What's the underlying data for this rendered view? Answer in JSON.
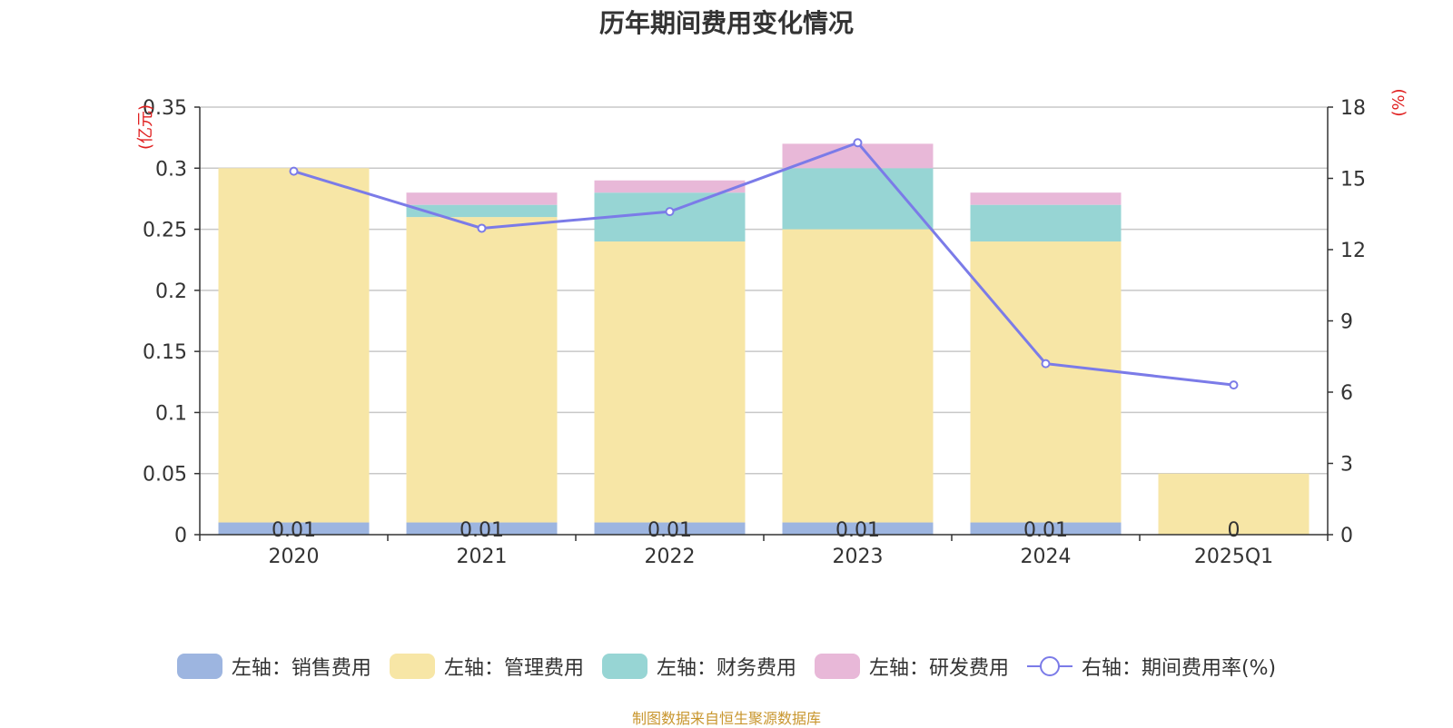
{
  "title": "历年期间费用变化情况",
  "source": "制图数据来自恒生聚源数据库",
  "chart_data": {
    "type": "bar",
    "stacked": true,
    "categories": [
      "2020",
      "2021",
      "2022",
      "2023",
      "2024",
      "2025Q1"
    ],
    "left_axis": {
      "label": "(亿元)",
      "ylim": [
        0,
        0.35
      ],
      "ticks": [
        "0",
        "0.05",
        "0.1",
        "0.15",
        "0.2",
        "0.25",
        "0.3",
        "0.35"
      ]
    },
    "right_axis": {
      "label": "(%)",
      "ylim": [
        0,
        18
      ],
      "ticks": [
        "0",
        "3",
        "6",
        "9",
        "12",
        "15",
        "18"
      ]
    },
    "grid": true,
    "legend_position": "bottom",
    "series": [
      {
        "name": "左轴：销售费用",
        "axis": "left",
        "color": "#9db5e0",
        "values": [
          0.01,
          0.01,
          0.01,
          0.01,
          0.01,
          0
        ],
        "labels": [
          "0.01",
          "0.01",
          "0.01",
          "0.01",
          "0.01",
          "0"
        ]
      },
      {
        "name": "左轴：管理费用",
        "axis": "left",
        "color": "#f7e6a6",
        "values": [
          0.29,
          0.25,
          0.23,
          0.24,
          0.23,
          0.05
        ]
      },
      {
        "name": "左轴：财务费用",
        "axis": "left",
        "color": "#97d5d4",
        "values": [
          0,
          0.01,
          0.04,
          0.05,
          0.03,
          0
        ]
      },
      {
        "name": "左轴：研发费用",
        "axis": "left",
        "color": "#e8b8d8",
        "values": [
          0,
          0.01,
          0.01,
          0.02,
          0.01,
          0
        ]
      },
      {
        "name": "右轴：期间费用率(%)",
        "axis": "right",
        "type": "line",
        "color": "#7b7be8",
        "values": [
          15.3,
          12.9,
          13.6,
          16.5,
          7.2,
          6.3
        ]
      }
    ]
  }
}
